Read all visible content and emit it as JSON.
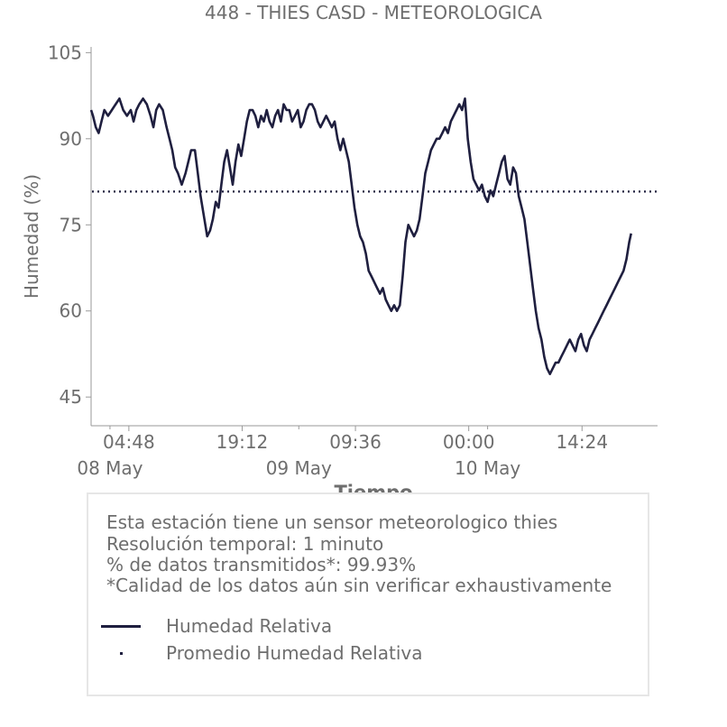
{
  "chart_data": {
    "type": "line",
    "title": "448 - THIES CASD - METEOROLOGICA",
    "xlabel": "Tiempo",
    "ylabel": "Humedad (%)",
    "ylim": [
      40,
      106
    ],
    "y_ticks": [
      45,
      60,
      75,
      90,
      105
    ],
    "x_ticks": [
      "04:48",
      "19:12",
      "09:36",
      "00:00",
      "14:24"
    ],
    "date_labels": [
      "08 May",
      "09 May",
      "10 May"
    ],
    "xlim_hours": [
      0,
      60
    ],
    "grid": false,
    "colors": {
      "series": "#1f1f3f",
      "text": "#6e6e6e"
    },
    "series": [
      {
        "name": "Humedad Relativa",
        "style": "solid",
        "points": [
          [
            0.0,
            95
          ],
          [
            0.2,
            94
          ],
          [
            0.5,
            92
          ],
          [
            0.8,
            91
          ],
          [
            1.1,
            93
          ],
          [
            1.4,
            95
          ],
          [
            1.8,
            94
          ],
          [
            2.2,
            95
          ],
          [
            2.6,
            96
          ],
          [
            3.0,
            97
          ],
          [
            3.4,
            95
          ],
          [
            3.8,
            94
          ],
          [
            4.2,
            95
          ],
          [
            4.5,
            93
          ],
          [
            4.8,
            95
          ],
          [
            5.1,
            96
          ],
          [
            5.5,
            97
          ],
          [
            5.9,
            96
          ],
          [
            6.3,
            94
          ],
          [
            6.6,
            92
          ],
          [
            6.9,
            95
          ],
          [
            7.2,
            96
          ],
          [
            7.6,
            95
          ],
          [
            8.0,
            92
          ],
          [
            8.3,
            90
          ],
          [
            8.6,
            88
          ],
          [
            8.9,
            85
          ],
          [
            9.2,
            84
          ],
          [
            9.6,
            82
          ],
          [
            10.0,
            84
          ],
          [
            10.3,
            86
          ],
          [
            10.6,
            88
          ],
          [
            11.0,
            88
          ],
          [
            11.3,
            84
          ],
          [
            11.6,
            80
          ],
          [
            12.0,
            76
          ],
          [
            12.3,
            73
          ],
          [
            12.6,
            74
          ],
          [
            12.9,
            76
          ],
          [
            13.2,
            79
          ],
          [
            13.5,
            78
          ],
          [
            13.8,
            82
          ],
          [
            14.1,
            86
          ],
          [
            14.4,
            88
          ],
          [
            14.7,
            85
          ],
          [
            15.0,
            82
          ],
          [
            15.3,
            86
          ],
          [
            15.6,
            89
          ],
          [
            15.9,
            87
          ],
          [
            16.2,
            90
          ],
          [
            16.5,
            93
          ],
          [
            16.8,
            95
          ],
          [
            17.1,
            95
          ],
          [
            17.4,
            94
          ],
          [
            17.7,
            92
          ],
          [
            18.0,
            94
          ],
          [
            18.3,
            93
          ],
          [
            18.6,
            95
          ],
          [
            18.9,
            93
          ],
          [
            19.2,
            92
          ],
          [
            19.5,
            94
          ],
          [
            19.8,
            95
          ],
          [
            20.1,
            93
          ],
          [
            20.4,
            96
          ],
          [
            20.7,
            95
          ],
          [
            21.0,
            95
          ],
          [
            21.3,
            93
          ],
          [
            21.6,
            94
          ],
          [
            21.9,
            95
          ],
          [
            22.2,
            92
          ],
          [
            22.5,
            93
          ],
          [
            22.8,
            95
          ],
          [
            23.1,
            96
          ],
          [
            23.4,
            96
          ],
          [
            23.7,
            95
          ],
          [
            24.0,
            93
          ],
          [
            24.3,
            92
          ],
          [
            24.6,
            93
          ],
          [
            24.9,
            94
          ],
          [
            25.2,
            93
          ],
          [
            25.5,
            92
          ],
          [
            25.8,
            93
          ],
          [
            26.1,
            90
          ],
          [
            26.4,
            88
          ],
          [
            26.7,
            90
          ],
          [
            27.0,
            88
          ],
          [
            27.3,
            86
          ],
          [
            27.6,
            82
          ],
          [
            27.9,
            78
          ],
          [
            28.2,
            75
          ],
          [
            28.5,
            73
          ],
          [
            28.8,
            72
          ],
          [
            29.1,
            70
          ],
          [
            29.4,
            67
          ],
          [
            29.7,
            66
          ],
          [
            30.0,
            65
          ],
          [
            30.3,
            64
          ],
          [
            30.6,
            63
          ],
          [
            30.9,
            64
          ],
          [
            31.2,
            62
          ],
          [
            31.5,
            61
          ],
          [
            31.8,
            60
          ],
          [
            32.1,
            61
          ],
          [
            32.4,
            60
          ],
          [
            32.7,
            61
          ],
          [
            33.0,
            66
          ],
          [
            33.3,
            72
          ],
          [
            33.6,
            75
          ],
          [
            33.9,
            74
          ],
          [
            34.2,
            73
          ],
          [
            34.5,
            74
          ],
          [
            34.8,
            76
          ],
          [
            35.1,
            80
          ],
          [
            35.4,
            84
          ],
          [
            35.7,
            86
          ],
          [
            36.0,
            88
          ],
          [
            36.3,
            89
          ],
          [
            36.6,
            90
          ],
          [
            36.9,
            90
          ],
          [
            37.2,
            91
          ],
          [
            37.5,
            92
          ],
          [
            37.8,
            91
          ],
          [
            38.1,
            93
          ],
          [
            38.4,
            94
          ],
          [
            38.7,
            95
          ],
          [
            39.0,
            96
          ],
          [
            39.3,
            95
          ],
          [
            39.6,
            97
          ],
          [
            39.9,
            90
          ],
          [
            40.2,
            86
          ],
          [
            40.5,
            83
          ],
          [
            40.8,
            82
          ],
          [
            41.1,
            81
          ],
          [
            41.4,
            82
          ],
          [
            41.7,
            80
          ],
          [
            42.0,
            79
          ],
          [
            42.3,
            81
          ],
          [
            42.6,
            80
          ],
          [
            42.9,
            82
          ],
          [
            43.2,
            84
          ],
          [
            43.5,
            86
          ],
          [
            43.8,
            87
          ],
          [
            44.1,
            83
          ],
          [
            44.4,
            82
          ],
          [
            44.7,
            85
          ],
          [
            45.0,
            84
          ],
          [
            45.3,
            80
          ],
          [
            45.6,
            78
          ],
          [
            45.9,
            76
          ],
          [
            46.2,
            72
          ],
          [
            46.5,
            68
          ],
          [
            46.8,
            64
          ],
          [
            47.1,
            60
          ],
          [
            47.4,
            57
          ],
          [
            47.7,
            55
          ],
          [
            48.0,
            52
          ],
          [
            48.3,
            50
          ],
          [
            48.6,
            49
          ],
          [
            48.9,
            50
          ],
          [
            49.2,
            51
          ],
          [
            49.5,
            51
          ],
          [
            49.8,
            52
          ],
          [
            50.1,
            53
          ],
          [
            50.4,
            54
          ],
          [
            50.7,
            55
          ],
          [
            51.0,
            54
          ],
          [
            51.3,
            53
          ],
          [
            51.6,
            55
          ],
          [
            51.9,
            56
          ],
          [
            52.2,
            54
          ],
          [
            52.5,
            53
          ],
          [
            52.8,
            55
          ],
          [
            53.1,
            56
          ],
          [
            53.4,
            57
          ],
          [
            53.7,
            58
          ],
          [
            54.0,
            59
          ],
          [
            54.3,
            60
          ],
          [
            54.6,
            61
          ],
          [
            54.9,
            62
          ],
          [
            55.2,
            63
          ],
          [
            55.5,
            64
          ],
          [
            55.8,
            65
          ],
          [
            56.1,
            66
          ],
          [
            56.4,
            67
          ],
          [
            56.7,
            69
          ],
          [
            57.0,
            72
          ],
          [
            57.2,
            73.5
          ]
        ]
      },
      {
        "name": "Promedio Humedad Relativa",
        "style": "dotted",
        "value": 80.8
      }
    ]
  },
  "info": {
    "lines": [
      "Esta estación tiene un sensor meteorologico thies",
      "Resolución temporal: 1 minuto",
      "% de datos transmitidos*: 99.93%",
      "*Calidad de los datos aún sin verificar exhaustivamente"
    ]
  },
  "legend": {
    "items": [
      {
        "label": "Humedad Relativa",
        "style": "solid"
      },
      {
        "label": "Promedio Humedad Relativa",
        "style": "dotted"
      }
    ]
  }
}
